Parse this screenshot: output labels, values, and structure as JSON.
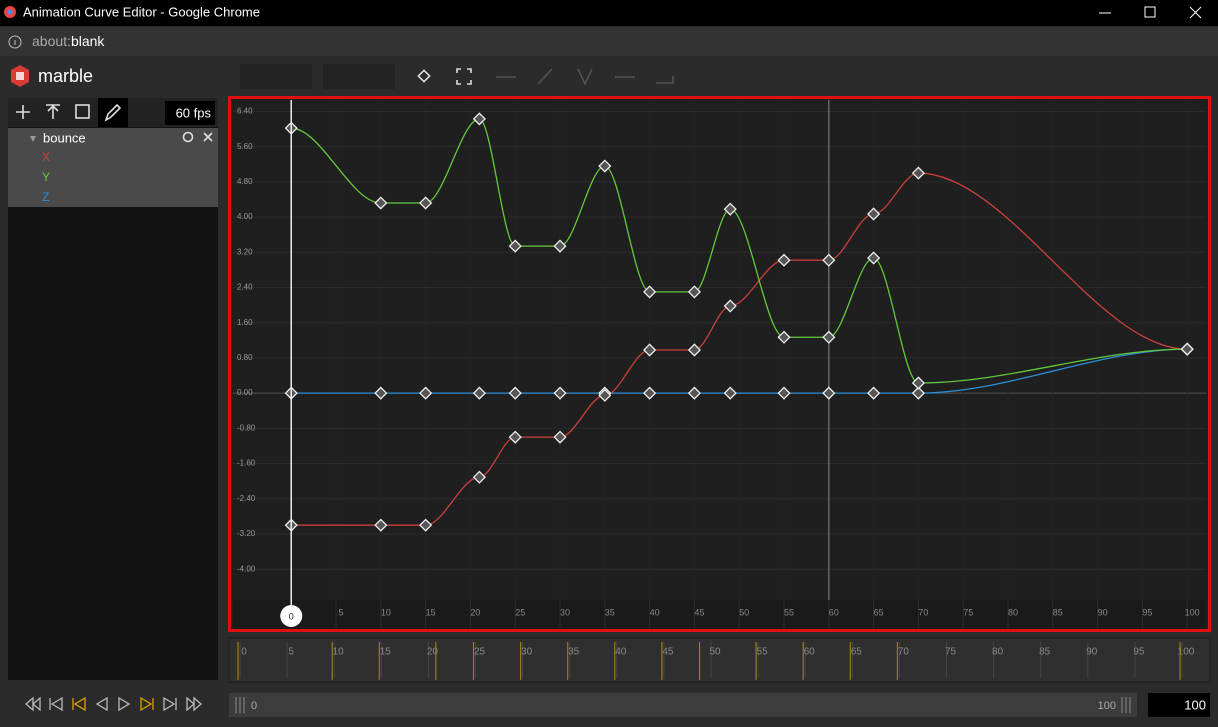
{
  "window": {
    "title": "Animation Curve Editor - Google Chrome",
    "url_scheme": "about:",
    "url_path": "blank"
  },
  "app": {
    "name": "marble",
    "fps": "60 fps",
    "end_frame": 100
  },
  "tree": {
    "root": "bounce"
  },
  "chart_data": {
    "type": "curve",
    "x": [
      0,
      10,
      15,
      21,
      25,
      30,
      35,
      40,
      45,
      49,
      55,
      60,
      65,
      70,
      100
    ],
    "series": [
      {
        "name": "X",
        "color": "#c9403d",
        "values": [
          -3.0,
          -3.0,
          -3.0,
          -1.91,
          -1.0,
          -1.0,
          -0.05,
          0.98,
          0.98,
          1.98,
          3.02,
          3.02,
          4.07,
          5.0,
          1.0
        ]
      },
      {
        "name": "Y",
        "color": "#63c93a",
        "values": [
          6.02,
          4.32,
          4.32,
          6.23,
          3.34,
          3.34,
          5.16,
          2.3,
          2.3,
          4.18,
          1.27,
          1.27,
          3.07,
          0.23,
          1.0
        ]
      },
      {
        "name": "Z",
        "color": "#2b8fd9",
        "values": [
          0,
          0,
          0,
          0,
          0,
          0,
          0,
          0,
          0,
          0,
          0,
          0,
          0,
          0,
          1.0
        ]
      }
    ],
    "xlim": [
      -6.5,
      102.1
    ],
    "xticks": [
      5,
      10,
      15,
      20,
      25,
      30,
      35,
      40,
      45,
      50,
      55,
      60,
      65,
      70,
      75,
      80,
      85,
      90,
      95,
      100
    ],
    "ylim": [
      -4.7,
      6.66
    ],
    "yticks": [
      {
        "value": 6.4,
        "label": "6.40"
      },
      {
        "value": 5.6,
        "label": "5.60"
      },
      {
        "value": 4.8,
        "label": "4.80"
      },
      {
        "value": 4.0,
        "label": "4.00"
      },
      {
        "value": 3.2,
        "label": "3.20"
      },
      {
        "value": 2.4,
        "label": "2.40"
      },
      {
        "value": 1.6,
        "label": "1.60"
      },
      {
        "value": 0.8,
        "label": "0.80"
      },
      {
        "value": 0,
        "label": "0.00"
      },
      {
        "value": -0.8,
        "label": "-0.80"
      },
      {
        "value": -1.6,
        "label": "-1.60"
      },
      {
        "value": -2.4,
        "label": "-2.40"
      },
      {
        "value": -3.2,
        "label": "-3.20"
      },
      {
        "value": -4.0,
        "label": "-4.00"
      }
    ],
    "grid": true,
    "playhead": 0,
    "cursor": 60
  },
  "timeline": {
    "ticks": [
      0,
      5,
      10,
      15,
      20,
      25,
      30,
      35,
      40,
      45,
      50,
      55,
      60,
      65,
      70,
      75,
      80,
      85,
      90,
      95,
      100
    ],
    "range_start": 0,
    "range_end": 100
  }
}
